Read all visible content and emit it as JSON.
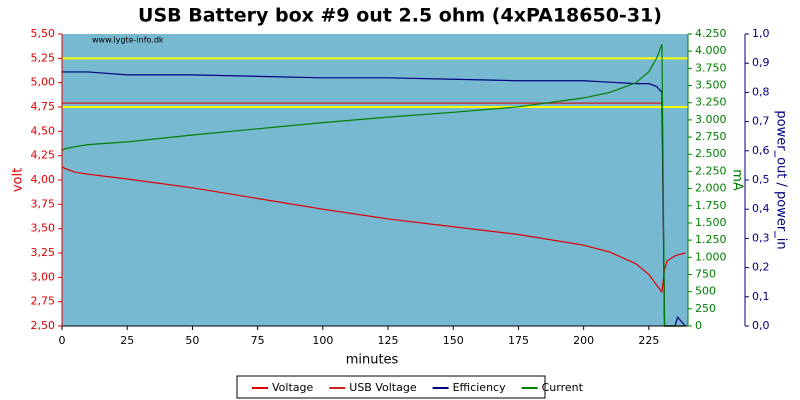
{
  "chart_data": {
    "type": "line",
    "title": "USB Battery box #9 out 2.5 ohm (4xPA18650-31)",
    "watermark": "www.lygte-info.dk",
    "xlabel": "minutes",
    "ylabel": "volt",
    "y2label": "mA",
    "y3label": "power_out / power_in",
    "background": "#77b9d1",
    "xlim": [
      0,
      240
    ],
    "xticks": [
      0,
      25,
      50,
      75,
      100,
      125,
      150,
      175,
      200,
      225
    ],
    "ylim": [
      2.5,
      5.5
    ],
    "yticks": [
      {
        "value": 2.5,
        "label": "2,50"
      },
      {
        "value": 2.75,
        "label": "2,75"
      },
      {
        "value": 3.0,
        "label": "3,00"
      },
      {
        "value": 3.25,
        "label": "3,25"
      },
      {
        "value": 3.5,
        "label": "3,50"
      },
      {
        "value": 3.75,
        "label": "3,75"
      },
      {
        "value": 4.0,
        "label": "4,00"
      },
      {
        "value": 4.25,
        "label": "4,25"
      },
      {
        "value": 4.5,
        "label": "4,50"
      },
      {
        "value": 4.75,
        "label": "4,75"
      },
      {
        "value": 5.0,
        "label": "5,00"
      },
      {
        "value": 5.25,
        "label": "5,25"
      },
      {
        "value": 5.5,
        "label": "5,50"
      }
    ],
    "y2lim": [
      0,
      4250
    ],
    "y2ticks": [
      0,
      250,
      500,
      750,
      {
        "value": 1000,
        "label": "1.000"
      },
      {
        "value": 1250,
        "label": "1.250"
      },
      {
        "value": 1500,
        "label": "1.500"
      },
      {
        "value": 1750,
        "label": "1.750"
      },
      {
        "value": 2000,
        "label": "2.000"
      },
      {
        "value": 2250,
        "label": "2.250"
      },
      {
        "value": 2500,
        "label": "2.500"
      },
      {
        "value": 2750,
        "label": "2.750"
      },
      {
        "value": 3000,
        "label": "3.000"
      },
      {
        "value": 3250,
        "label": "3.250"
      },
      {
        "value": 3500,
        "label": "3.500"
      },
      {
        "value": 3750,
        "label": "3.750"
      },
      {
        "value": 4000,
        "label": "4.000"
      },
      {
        "value": 4250,
        "label": "4.250"
      }
    ],
    "y3lim": [
      0,
      1
    ],
    "y3ticks": [
      {
        "value": 0,
        "label": "0,0"
      },
      {
        "value": 0.1,
        "label": "0,1"
      },
      {
        "value": 0.2,
        "label": "0,2"
      },
      {
        "value": 0.3,
        "label": "0,3"
      },
      {
        "value": 0.4,
        "label": "0,4"
      },
      {
        "value": 0.5,
        "label": "0,5"
      },
      {
        "value": 0.6,
        "label": "0,6"
      },
      {
        "value": 0.7,
        "label": "0,7"
      },
      {
        "value": 0.8,
        "label": "0,8"
      },
      {
        "value": 0.9,
        "label": "0,9"
      },
      {
        "value": 1,
        "label": "1,0"
      }
    ],
    "hlines": {
      "color": "#ffff00",
      "values": [
        5.25,
        4.75
      ]
    },
    "x": [
      0,
      1,
      5,
      10,
      25,
      50,
      75,
      100,
      125,
      150,
      175,
      200,
      210,
      220,
      225,
      228,
      230,
      231,
      232,
      235,
      236,
      239
    ],
    "series": [
      {
        "name": "Voltage",
        "color": "#e00000",
        "axis": "y",
        "values": [
          4.14,
          4.12,
          4.08,
          4.06,
          4.01,
          3.92,
          3.81,
          3.7,
          3.6,
          3.52,
          3.44,
          3.33,
          3.26,
          3.14,
          3.03,
          2.92,
          2.85,
          3.08,
          3.17,
          3.22,
          3.23,
          3.25
        ]
      },
      {
        "name": "USB Voltage",
        "color": "#d02020",
        "axis": "y",
        "values": [
          4.79,
          4.79,
          4.79,
          4.79,
          4.79,
          4.79,
          4.79,
          4.79,
          4.79,
          4.79,
          4.79,
          4.79,
          4.79,
          4.79,
          4.79,
          4.79,
          4.79,
          2.5,
          2.5,
          2.5,
          2.5,
          2.5
        ]
      },
      {
        "name": "Efficiency",
        "color": "#000080",
        "axis": "y3",
        "values": [
          0.87,
          0.87,
          0.87,
          0.87,
          0.86,
          0.86,
          0.855,
          0.85,
          0.85,
          0.845,
          0.84,
          0.84,
          0.835,
          0.83,
          0.83,
          0.82,
          0.8,
          0,
          0,
          0,
          0.03,
          0
        ]
      },
      {
        "name": "Current",
        "color": "#008000",
        "axis": "y2",
        "values": [
          2550,
          2580,
          2610,
          2640,
          2680,
          2780,
          2870,
          2960,
          3040,
          3110,
          3190,
          3320,
          3400,
          3540,
          3700,
          3900,
          4100,
          0,
          0,
          0,
          0,
          0
        ]
      }
    ]
  }
}
